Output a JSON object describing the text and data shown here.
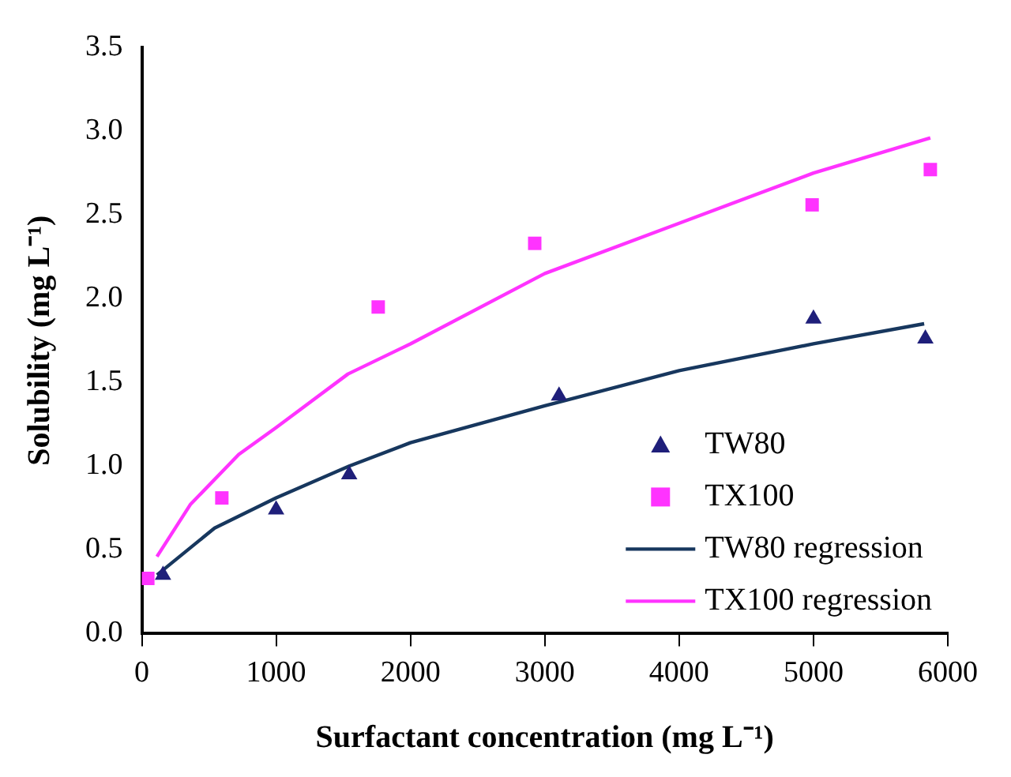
{
  "chart_data": {
    "type": "scatter",
    "xlabel": "Surfactant concentration (mg L⁻¹)",
    "ylabel": "Solubility (mg L⁻¹)",
    "xlim": [
      0,
      6000
    ],
    "xticks": [
      0,
      1000,
      2000,
      3000,
      4000,
      5000,
      6000
    ],
    "ylim": [
      0,
      3.5
    ],
    "yticks": [
      {
        "value": 0,
        "label": "0.0"
      },
      0.5,
      {
        "value": 1,
        "label": "1.0"
      },
      1.5,
      {
        "value": 2,
        "label": "2.0"
      },
      2.5,
      {
        "value": 3,
        "label": "3.0"
      },
      3.5
    ],
    "grid": false,
    "legend": "bottom right",
    "series": [
      {
        "name": "TW80",
        "type": "scatter",
        "marker": "triangle",
        "color": "#1f1f7a",
        "x": [
          158,
          1000,
          1544,
          3106,
          5000,
          5833
        ],
        "values": [
          0.35,
          0.74,
          0.95,
          1.42,
          1.88,
          1.76
        ]
      },
      {
        "name": "TX100",
        "type": "scatter",
        "marker": "square",
        "color": "#ff33ff",
        "x": [
          45,
          596,
          1760,
          2925,
          4990,
          5870
        ],
        "values": [
          0.33,
          0.81,
          1.95,
          2.33,
          2.56,
          2.77
        ]
      },
      {
        "name": "TW80 regression",
        "type": "line",
        "marker": "none",
        "color": "#17375e",
        "x": [
          113,
          542,
          1000,
          1544,
          2000,
          3000,
          4000,
          5000,
          5824
        ],
        "values": [
          0.35,
          0.63,
          0.81,
          1.0,
          1.14,
          1.36,
          1.57,
          1.73,
          1.85
        ]
      },
      {
        "name": "TX100 regression",
        "type": "line",
        "marker": "none",
        "color": "#ff33ff",
        "x": [
          113,
          361,
          722,
          1000,
          1535,
          2000,
          3000,
          4000,
          5000,
          5870
        ],
        "values": [
          0.46,
          0.77,
          1.07,
          1.23,
          1.55,
          1.73,
          2.15,
          2.45,
          2.75,
          2.96
        ]
      }
    ]
  }
}
